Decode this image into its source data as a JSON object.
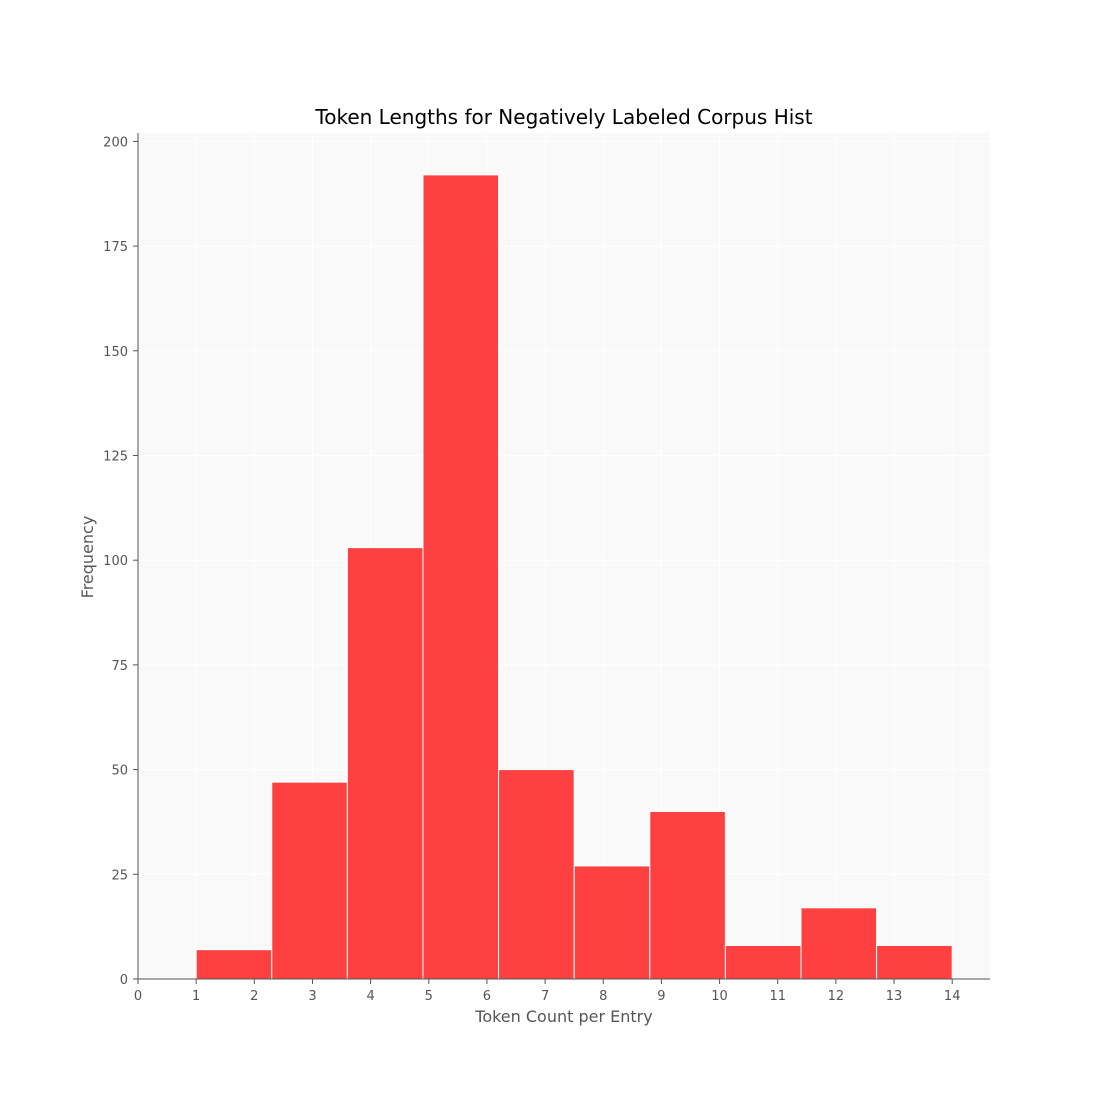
{
  "chart_data": {
    "type": "bar",
    "title": "Token Lengths for Negatively Labeled Corpus Hist",
    "xlabel": "Token Count per Entry",
    "ylabel": "Frequency",
    "xlim": [
      0,
      14.65
    ],
    "ylim": [
      0,
      202
    ],
    "grid": true,
    "legend": "none",
    "colors": {
      "bar": "#ff4040",
      "bar_edge": "#ffffff",
      "plot_background": "#f9f9f9",
      "grid": "#ffffff"
    },
    "x_ticks": [
      "0",
      "1",
      "2",
      "3",
      "4",
      "5",
      "6",
      "7",
      "8",
      "9",
      "10",
      "11",
      "12",
      "13",
      "14"
    ],
    "y_ticks": [
      "0",
      "25",
      "50",
      "75",
      "100",
      "125",
      "150",
      "175",
      "200"
    ],
    "bins": [
      {
        "x0": 1.0,
        "x1": 2.3,
        "value": 7
      },
      {
        "x0": 2.3,
        "x1": 3.6,
        "value": 47
      },
      {
        "x0": 3.6,
        "x1": 4.9,
        "value": 103
      },
      {
        "x0": 4.9,
        "x1": 6.2,
        "value": 192
      },
      {
        "x0": 6.2,
        "x1": 7.5,
        "value": 50
      },
      {
        "x0": 7.5,
        "x1": 8.8,
        "value": 27
      },
      {
        "x0": 8.8,
        "x1": 10.1,
        "value": 40
      },
      {
        "x0": 10.1,
        "x1": 11.4,
        "value": 8
      },
      {
        "x0": 11.4,
        "x1": 12.7,
        "value": 17
      },
      {
        "x0": 12.7,
        "x1": 14.0,
        "value": 8
      }
    ]
  }
}
